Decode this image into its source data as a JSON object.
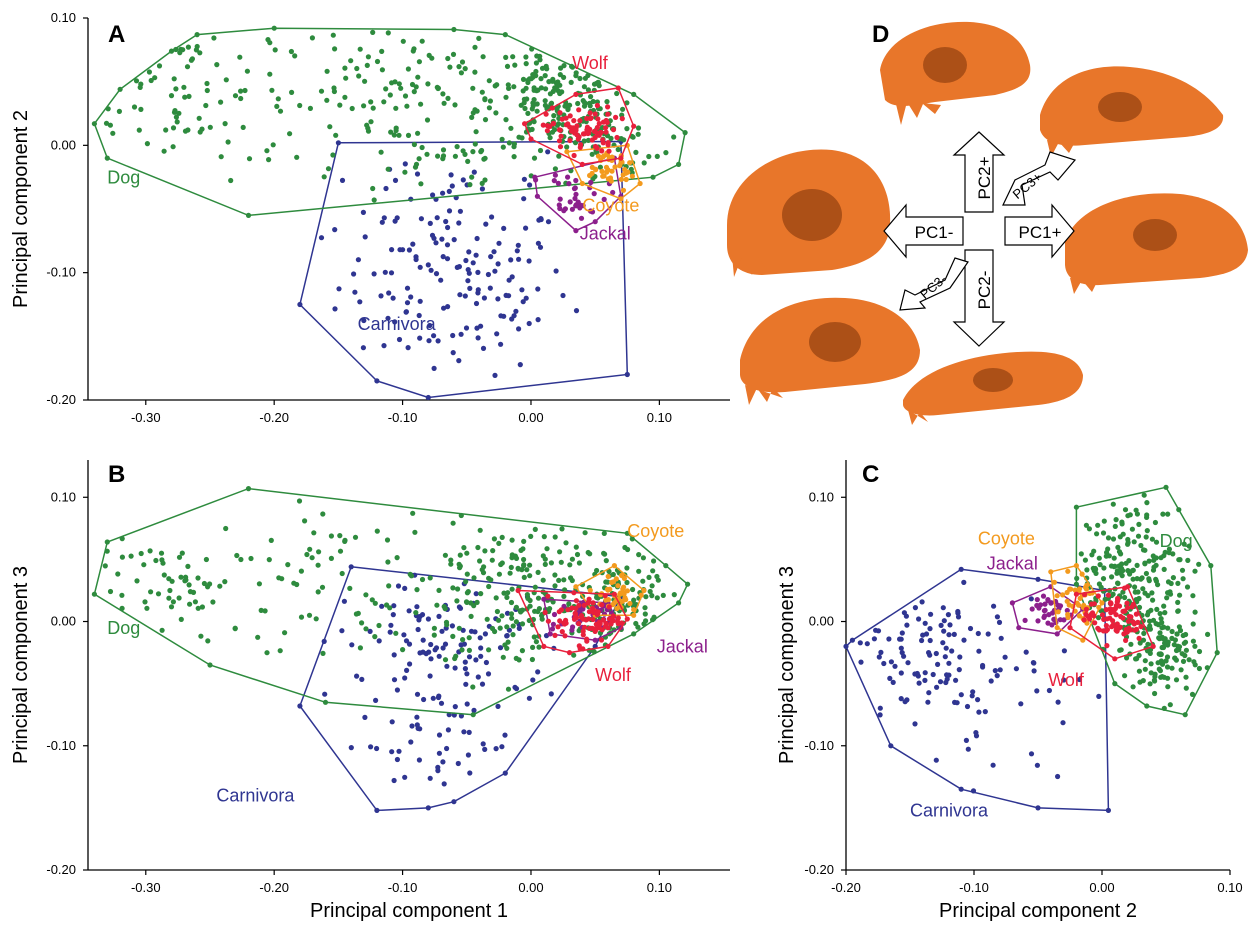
{
  "colors": {
    "Dog": "#2e8b3e",
    "Carnivora": "#2f3591",
    "Wolf": "#e8203c",
    "Coyote": "#f39a1e",
    "Jackal": "#8c1f8c",
    "axis": "#000000",
    "skull": "#e8762a",
    "skull_dark": "#7a3208"
  },
  "panel_d": {
    "letter": "D",
    "arrows": [
      "PC2+",
      "PC1-",
      "PC1+",
      "PC2-",
      "PC3+",
      "PC3-"
    ]
  },
  "chart_data": [
    {
      "panel": "A",
      "type": "scatter",
      "title": "",
      "xlabel": "",
      "ylabel": "Principal component 2",
      "xlim": [
        -0.345,
        0.155
      ],
      "ylim": [
        -0.2,
        0.1
      ],
      "xticks": [
        -0.3,
        -0.2,
        -0.1,
        0.0,
        0.1
      ],
      "xticklabels": [
        "-0.30",
        "-0.20",
        "-0.10",
        "0.00",
        "0.10"
      ],
      "yticks": [
        -0.2,
        -0.1,
        0.0,
        0.1
      ],
      "yticklabels": [
        "-0.20",
        "-0.10",
        "0.00",
        "0.10"
      ],
      "grid": false,
      "groups": [
        {
          "name": "Dog",
          "label": "Dog",
          "hull": [
            [
              -0.34,
              0.017
            ],
            [
              -0.32,
              0.044
            ],
            [
              -0.28,
              0.074
            ],
            [
              -0.26,
              0.087
            ],
            [
              -0.2,
              0.092
            ],
            [
              -0.06,
              0.091
            ],
            [
              -0.02,
              0.087
            ],
            [
              0.08,
              0.04
            ],
            [
              0.12,
              0.01
            ],
            [
              0.115,
              -0.015
            ],
            [
              0.095,
              -0.025
            ],
            [
              -0.22,
              -0.055
            ],
            [
              -0.33,
              -0.01
            ]
          ],
          "cores": [
            {
              "x": -0.27,
              "y": 0.045,
              "sx": 0.04,
              "sy": 0.035,
              "n": 75
            },
            {
              "x": -0.1,
              "y": 0.045,
              "sx": 0.06,
              "sy": 0.03,
              "n": 110
            },
            {
              "x": 0.02,
              "y": 0.04,
              "sx": 0.025,
              "sy": 0.02,
              "n": 150
            },
            {
              "x": 0.06,
              "y": 0.0,
              "sx": 0.035,
              "sy": 0.025,
              "n": 70
            },
            {
              "x": -0.06,
              "y": -0.01,
              "sx": 0.05,
              "sy": 0.025,
              "n": 40
            }
          ]
        },
        {
          "name": "Carnivora",
          "label": "Carnivora",
          "hull": [
            [
              -0.15,
              0.002
            ],
            [
              0.07,
              0.003
            ],
            [
              0.075,
              -0.18
            ],
            [
              -0.08,
              -0.198
            ],
            [
              -0.12,
              -0.185
            ],
            [
              -0.18,
              -0.125
            ]
          ],
          "cores": [
            {
              "x": -0.06,
              "y": -0.11,
              "sx": 0.045,
              "sy": 0.035,
              "n": 140
            },
            {
              "x": -0.06,
              "y": -0.035,
              "sx": 0.05,
              "sy": 0.02,
              "n": 25
            }
          ]
        },
        {
          "name": "Wolf",
          "label": "Wolf",
          "hull": [
            [
              -0.005,
              0.017
            ],
            [
              0.035,
              0.04
            ],
            [
              0.068,
              0.045
            ],
            [
              0.08,
              0.015
            ],
            [
              0.07,
              -0.01
            ],
            [
              0.04,
              -0.015
            ],
            [
              0.0,
              0.005
            ]
          ],
          "cores": [
            {
              "x": 0.04,
              "y": 0.012,
              "sx": 0.014,
              "sy": 0.009,
              "n": 85
            }
          ]
        },
        {
          "name": "Coyote",
          "label": "Coyote",
          "hull": [
            [
              0.028,
              -0.005
            ],
            [
              0.075,
              0.0
            ],
            [
              0.085,
              -0.03
            ],
            [
              0.07,
              -0.042
            ],
            [
              0.04,
              -0.03
            ]
          ],
          "cores": [
            {
              "x": 0.058,
              "y": -0.018,
              "sx": 0.012,
              "sy": 0.009,
              "n": 40
            }
          ]
        },
        {
          "name": "Jackal",
          "label": "Jackal",
          "hull": [
            [
              0.003,
              -0.025
            ],
            [
              0.065,
              -0.01
            ],
            [
              0.07,
              -0.04
            ],
            [
              0.05,
              -0.06
            ],
            [
              0.035,
              -0.067
            ],
            [
              0.005,
              -0.04
            ]
          ],
          "cores": [
            {
              "x": 0.035,
              "y": -0.038,
              "sx": 0.012,
              "sy": 0.01,
              "n": 35
            }
          ]
        }
      ],
      "group_labels": [
        {
          "name": "Dog",
          "x": -0.33,
          "y": -0.03
        },
        {
          "name": "Carnivora",
          "x": -0.135,
          "y": -0.145
        },
        {
          "name": "Wolf",
          "x": 0.032,
          "y": 0.06
        },
        {
          "name": "Coyote",
          "x": 0.04,
          "y": -0.052
        },
        {
          "name": "Jackal",
          "x": 0.038,
          "y": -0.074
        }
      ]
    },
    {
      "panel": "B",
      "type": "scatter",
      "title": "",
      "xlabel": "Principal component 1",
      "ylabel": "Principal component 3",
      "xlim": [
        -0.345,
        0.155
      ],
      "ylim": [
        -0.2,
        0.13
      ],
      "xticks": [
        -0.3,
        -0.2,
        -0.1,
        0.0,
        0.1
      ],
      "xticklabels": [
        "-0.30",
        "-0.20",
        "-0.10",
        "0.00",
        "0.10"
      ],
      "yticks": [
        -0.2,
        -0.1,
        0.0,
        0.1
      ],
      "yticklabels": [
        "-0.20",
        "-0.10",
        "0.00",
        "0.10"
      ],
      "grid": false,
      "groups": [
        {
          "name": "Dog",
          "label": "Dog",
          "hull": [
            [
              -0.34,
              0.022
            ],
            [
              -0.33,
              0.064
            ],
            [
              -0.22,
              0.107
            ],
            [
              0.075,
              0.071
            ],
            [
              0.105,
              0.045
            ],
            [
              0.122,
              0.03
            ],
            [
              0.115,
              0.015
            ],
            [
              0.08,
              -0.01
            ],
            [
              -0.045,
              -0.075
            ],
            [
              -0.16,
              -0.065
            ],
            [
              -0.25,
              -0.035
            ]
          ],
          "cores": [
            {
              "x": -0.27,
              "y": 0.025,
              "sx": 0.035,
              "sy": 0.02,
              "n": 60
            },
            {
              "x": -0.15,
              "y": 0.04,
              "sx": 0.05,
              "sy": 0.03,
              "n": 60
            },
            {
              "x": 0.0,
              "y": 0.02,
              "sx": 0.05,
              "sy": 0.035,
              "n": 230
            },
            {
              "x": 0.07,
              "y": 0.01,
              "sx": 0.025,
              "sy": 0.02,
              "n": 80
            }
          ]
        },
        {
          "name": "Carnivora",
          "label": "Carnivora",
          "hull": [
            [
              -0.14,
              0.044
            ],
            [
              0.07,
              0.02
            ],
            [
              0.05,
              -0.02
            ],
            [
              -0.02,
              -0.122
            ],
            [
              -0.06,
              -0.145
            ],
            [
              -0.08,
              -0.15
            ],
            [
              -0.12,
              -0.152
            ],
            [
              -0.18,
              -0.068
            ]
          ],
          "cores": [
            {
              "x": -0.06,
              "y": -0.02,
              "sx": 0.045,
              "sy": 0.03,
              "n": 110
            },
            {
              "x": -0.08,
              "y": -0.1,
              "sx": 0.035,
              "sy": 0.025,
              "n": 40
            }
          ]
        },
        {
          "name": "Wolf",
          "label": "Wolf",
          "hull": [
            [
              -0.01,
              0.025
            ],
            [
              0.065,
              0.022
            ],
            [
              0.075,
              0.002
            ],
            [
              0.06,
              -0.02
            ],
            [
              0.03,
              -0.025
            ],
            [
              0.01,
              -0.02
            ]
          ],
          "cores": [
            {
              "x": 0.045,
              "y": 0.002,
              "sx": 0.013,
              "sy": 0.01,
              "n": 80
            }
          ]
        },
        {
          "name": "Coyote",
          "label": "Coyote",
          "hull": [
            [
              0.035,
              0.028
            ],
            [
              0.065,
              0.045
            ],
            [
              0.088,
              0.025
            ],
            [
              0.08,
              0.005
            ],
            [
              0.05,
              0.005
            ]
          ],
          "cores": [
            {
              "x": 0.065,
              "y": 0.022,
              "sx": 0.01,
              "sy": 0.009,
              "n": 40
            }
          ]
        },
        {
          "name": "Jackal",
          "label": "Jackal",
          "hull": [
            [
              0.01,
              0.018
            ],
            [
              0.06,
              0.015
            ],
            [
              0.07,
              -0.005
            ],
            [
              0.05,
              -0.015
            ],
            [
              0.015,
              -0.01
            ]
          ],
          "cores": [
            {
              "x": 0.04,
              "y": 0.002,
              "sx": 0.012,
              "sy": 0.008,
              "n": 35
            }
          ]
        }
      ],
      "group_labels": [
        {
          "name": "Dog",
          "x": -0.33,
          "y": -0.01
        },
        {
          "name": "Carnivora",
          "x": -0.245,
          "y": -0.145
        },
        {
          "name": "Wolf",
          "x": 0.05,
          "y": -0.048
        },
        {
          "name": "Coyote",
          "x": 0.075,
          "y": 0.068
        },
        {
          "name": "Jackal",
          "x": 0.098,
          "y": -0.025
        }
      ]
    },
    {
      "panel": "C",
      "type": "scatter",
      "title": "",
      "xlabel": "Principal component 2",
      "ylabel": "Principal component 3",
      "xlim": [
        -0.2,
        0.1
      ],
      "ylim": [
        -0.2,
        0.13
      ],
      "xticks": [
        -0.2,
        -0.1,
        0.0,
        0.1
      ],
      "xticklabels": [
        "-0.20",
        "-0.10",
        "0.00",
        "0.10"
      ],
      "yticks": [
        -0.2,
        -0.1,
        0.0,
        0.1
      ],
      "yticklabels": [
        "-0.20",
        "-0.10",
        "0.00",
        "0.10"
      ],
      "grid": false,
      "groups": [
        {
          "name": "Dog",
          "label": "Dog",
          "hull": [
            [
              -0.02,
              0.092
            ],
            [
              0.05,
              0.108
            ],
            [
              0.06,
              0.09
            ],
            [
              0.085,
              0.045
            ],
            [
              0.09,
              -0.025
            ],
            [
              0.065,
              -0.075
            ],
            [
              0.035,
              -0.068
            ],
            [
              0.01,
              -0.05
            ],
            [
              -0.02,
              0.03
            ]
          ],
          "cores": [
            {
              "x": 0.02,
              "y": 0.04,
              "sx": 0.025,
              "sy": 0.03,
              "n": 200
            },
            {
              "x": 0.045,
              "y": -0.025,
              "sx": 0.015,
              "sy": 0.02,
              "n": 120
            }
          ]
        },
        {
          "name": "Carnivora",
          "label": "Carnivora",
          "hull": [
            [
              -0.2,
              -0.02
            ],
            [
              -0.195,
              -0.015
            ],
            [
              -0.11,
              0.042
            ],
            [
              -0.05,
              0.034
            ],
            [
              0.002,
              0.025
            ],
            [
              0.005,
              -0.152
            ],
            [
              -0.05,
              -0.15
            ],
            [
              -0.11,
              -0.135
            ],
            [
              -0.165,
              -0.1
            ]
          ],
          "cores": [
            {
              "x": -0.14,
              "y": -0.02,
              "sx": 0.03,
              "sy": 0.04,
              "n": 95
            },
            {
              "x": -0.06,
              "y": -0.05,
              "sx": 0.04,
              "sy": 0.04,
              "n": 35
            }
          ]
        },
        {
          "name": "Wolf",
          "label": "Wolf",
          "hull": [
            [
              -0.02,
              0.022
            ],
            [
              0.02,
              0.028
            ],
            [
              0.04,
              -0.02
            ],
            [
              0.01,
              -0.03
            ],
            [
              -0.025,
              -0.005
            ]
          ],
          "cores": [
            {
              "x": 0.01,
              "y": 0.003,
              "sx": 0.012,
              "sy": 0.01,
              "n": 80
            }
          ]
        },
        {
          "name": "Coyote",
          "label": "Coyote",
          "hull": [
            [
              -0.04,
              0.04
            ],
            [
              -0.02,
              0.045
            ],
            [
              0.0,
              0.015
            ],
            [
              -0.015,
              -0.015
            ],
            [
              -0.035,
              -0.005
            ]
          ],
          "cores": [
            {
              "x": -0.02,
              "y": 0.015,
              "sx": 0.01,
              "sy": 0.012,
              "n": 40
            }
          ]
        },
        {
          "name": "Jackal",
          "label": "Jackal",
          "hull": [
            [
              -0.07,
              0.015
            ],
            [
              -0.04,
              0.028
            ],
            [
              -0.015,
              0.01
            ],
            [
              -0.035,
              -0.01
            ],
            [
              -0.065,
              -0.005
            ]
          ],
          "cores": [
            {
              "x": -0.042,
              "y": 0.008,
              "sx": 0.009,
              "sy": 0.008,
              "n": 35
            }
          ]
        }
      ],
      "group_labels": [
        {
          "name": "Dog",
          "x": 0.045,
          "y": 0.06
        },
        {
          "name": "Carnivora",
          "x": -0.15,
          "y": -0.157
        },
        {
          "name": "Wolf",
          "x": -0.042,
          "y": -0.052
        },
        {
          "name": "Coyote",
          "x": -0.097,
          "y": 0.062
        },
        {
          "name": "Jackal",
          "x": -0.09,
          "y": 0.042
        }
      ]
    }
  ]
}
